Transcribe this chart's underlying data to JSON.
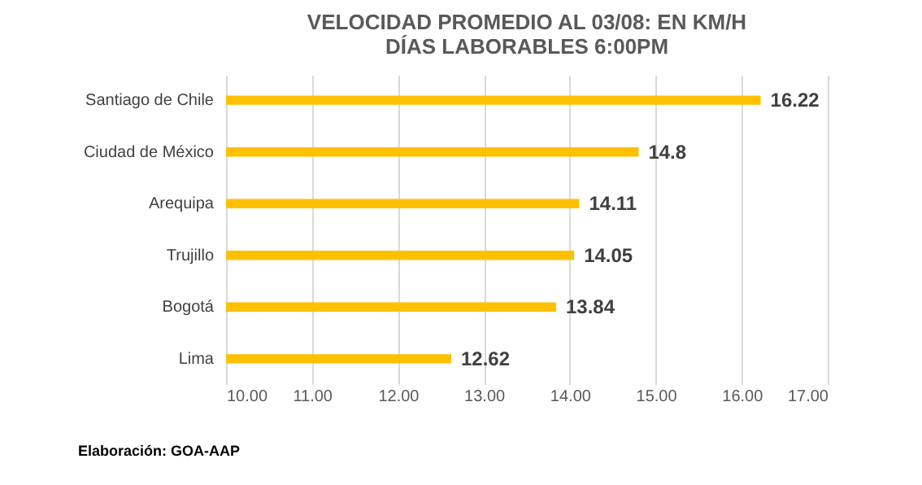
{
  "chart_data": {
    "type": "bar",
    "orientation": "horizontal",
    "title": "VELOCIDAD PROMEDIO AL 03/08: EN KM/H\nDÍAS LABORABLES 6:00PM",
    "categories": [
      "Santiago de Chile",
      "Ciudad de México",
      "Arequipa",
      "Trujillo",
      "Bogotá",
      "Lima"
    ],
    "values": [
      16.22,
      14.8,
      14.11,
      14.05,
      13.84,
      12.62
    ],
    "color": "#ffc000",
    "data_labels": true,
    "xlim": [
      10,
      17
    ],
    "xticks": [
      {
        "value": 10,
        "label": "10.00"
      },
      {
        "value": 11,
        "label": "11.00"
      },
      {
        "value": 12,
        "label": "12.00"
      },
      {
        "value": 13,
        "label": "13.00"
      },
      {
        "value": 14,
        "label": "14.00"
      },
      {
        "value": 15,
        "label": "15.00"
      },
      {
        "value": 16,
        "label": "16.00"
      },
      {
        "value": 17,
        "label": "17.00"
      }
    ],
    "grid": "x",
    "annotations": [
      "Elaboración: GOA-AAP"
    ]
  }
}
